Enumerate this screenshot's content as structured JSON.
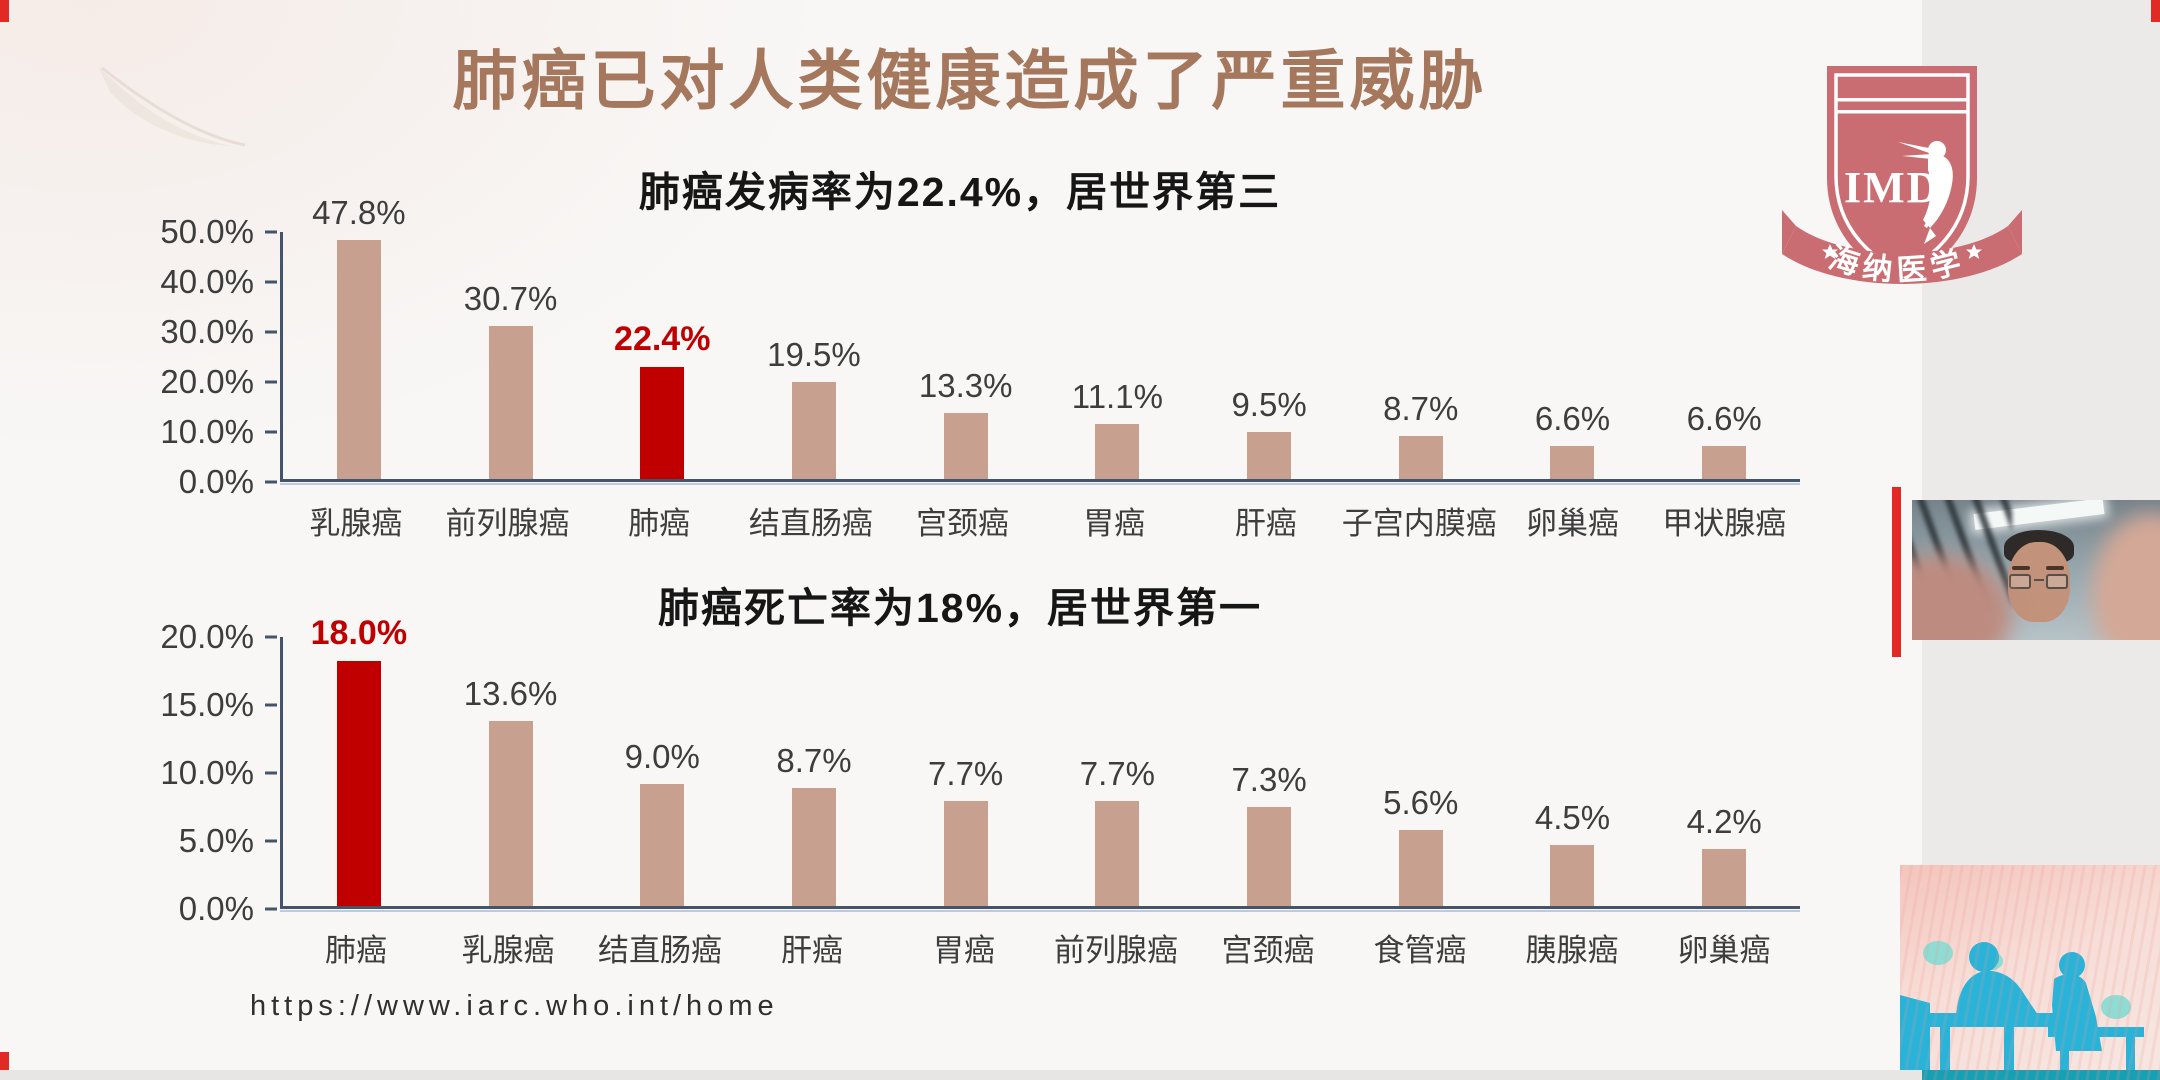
{
  "page": {
    "title": "肺癌已对人类健康造成了严重威胁",
    "source_url": "https://www.iarc.who.int/home"
  },
  "logo": {
    "acronym": "IMD",
    "name": "海纳医学"
  },
  "accent_colors": {
    "title_brown": "#a5775c",
    "bar_tan": "#c7a08f",
    "highlight_red": "#c00000",
    "axis_navy": "#44546a",
    "silhouette_blue": "#29b3d8",
    "logo_rose": "#c96d72",
    "screen_accent_red": "#e02a23"
  },
  "chart_data": [
    {
      "type": "bar",
      "title": "肺癌发病率为22.4%，居世界第三",
      "categories": [
        "乳腺癌",
        "前列腺癌",
        "肺癌",
        "结直肠癌",
        "宫颈癌",
        "胃癌",
        "肝癌",
        "子宫内膜癌",
        "卵巢癌",
        "甲状腺癌"
      ],
      "values": [
        47.8,
        30.7,
        22.4,
        19.5,
        13.3,
        11.1,
        9.5,
        8.7,
        6.6,
        6.6
      ],
      "value_labels": [
        "47.8%",
        "30.7%",
        "22.4%",
        "19.5%",
        "13.3%",
        "11.1%",
        "9.5%",
        "8.7%",
        "6.6%",
        "6.6%"
      ],
      "highlight_index": 2,
      "highlighted_category": "肺癌",
      "ylim": [
        0,
        50
      ],
      "ytick_labels": [
        "50.0%",
        "40.0%",
        "30.0%",
        "20.0%",
        "10.0%",
        "0.0%"
      ],
      "xlabel": "",
      "ylabel": "",
      "grid": false,
      "legend": "none"
    },
    {
      "type": "bar",
      "title": "肺癌死亡率为18%，居世界第一",
      "categories": [
        "肺癌",
        "乳腺癌",
        "结直肠癌",
        "肝癌",
        "胃癌",
        "前列腺癌",
        "宫颈癌",
        "食管癌",
        "胰腺癌",
        "卵巢癌"
      ],
      "values": [
        18.0,
        13.6,
        9.0,
        8.7,
        7.7,
        7.7,
        7.3,
        5.6,
        4.5,
        4.2
      ],
      "value_labels": [
        "18.0%",
        "13.6%",
        "9.0%",
        "8.7%",
        "7.7%",
        "7.7%",
        "7.3%",
        "5.6%",
        "4.5%",
        "4.2%"
      ],
      "highlight_index": 0,
      "highlighted_category": "肺癌",
      "ylim": [
        0,
        20
      ],
      "ytick_labels": [
        "20.0%",
        "15.0%",
        "10.0%",
        "5.0%",
        "0.0%"
      ],
      "xlabel": "",
      "ylabel": "",
      "grid": false,
      "legend": "none"
    }
  ]
}
